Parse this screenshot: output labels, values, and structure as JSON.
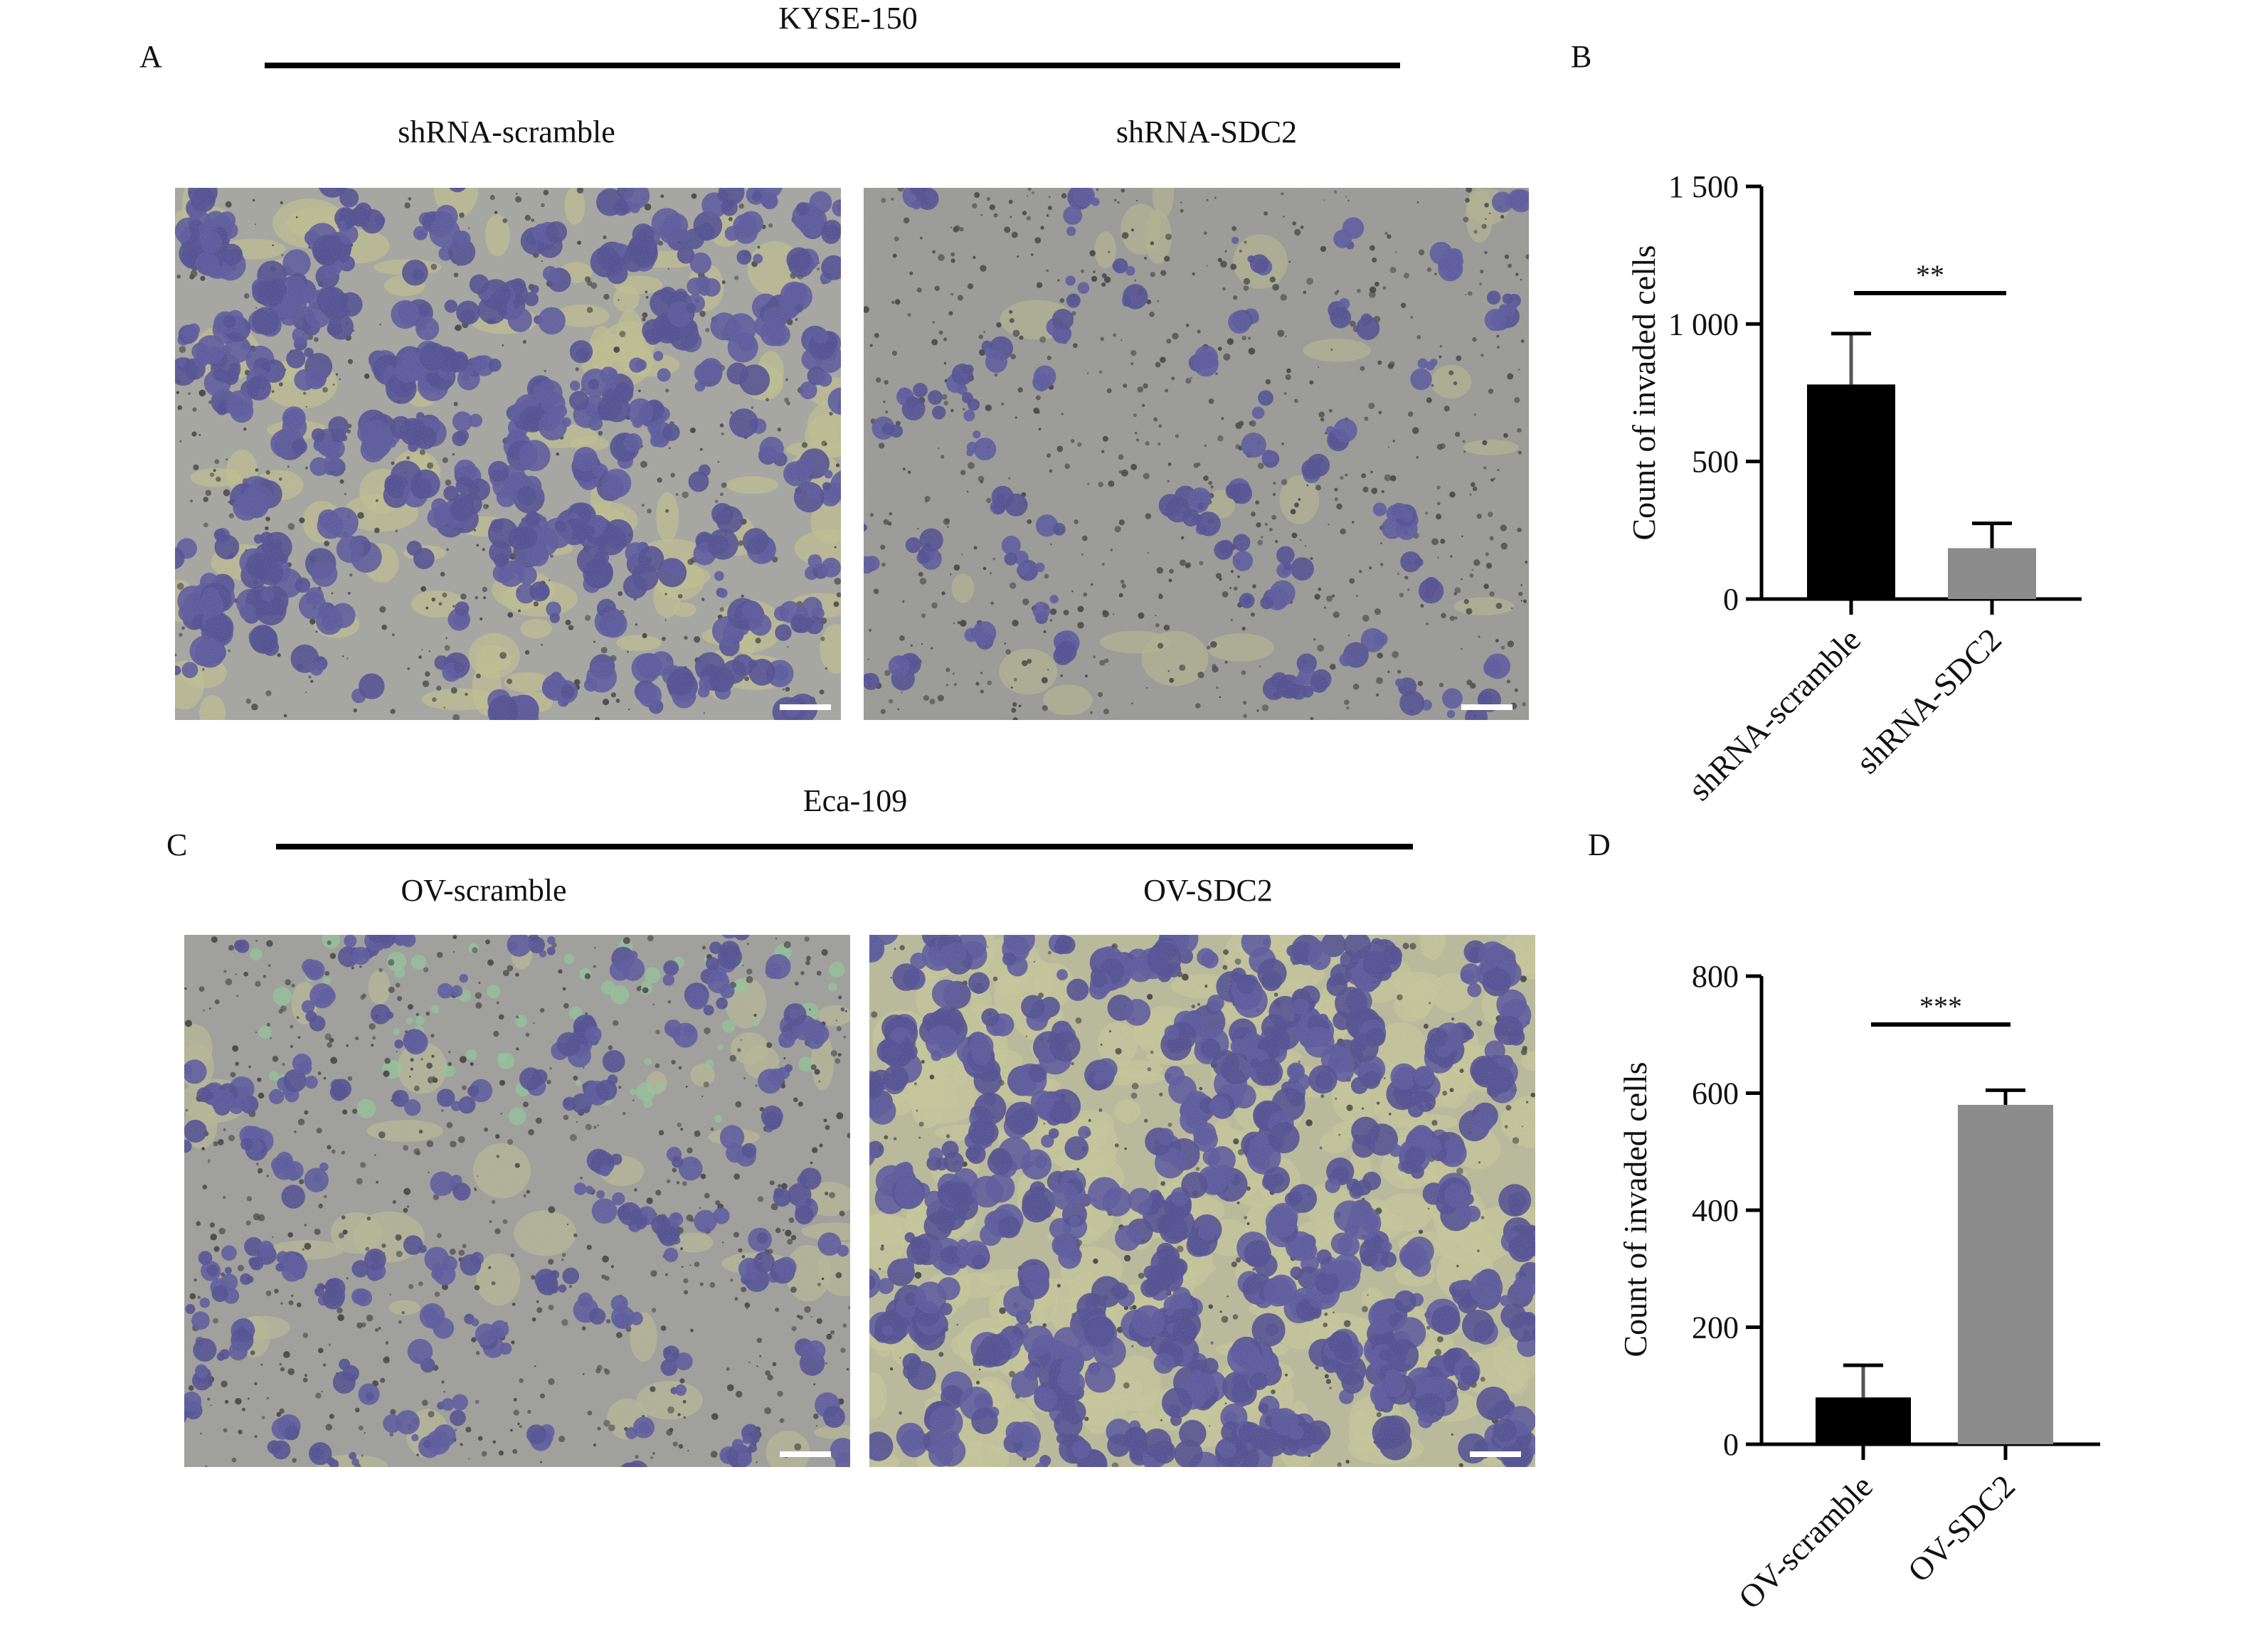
{
  "panels": {
    "A": {
      "letter": "A",
      "cell_line": "KYSE-150",
      "images": [
        {
          "label": "shRNA-scramble",
          "scene": "dense"
        },
        {
          "label": "shRNA-SDC2",
          "scene": "sparse"
        }
      ]
    },
    "C": {
      "letter": "C",
      "cell_line": "Eca-109",
      "images": [
        {
          "label": "OV-scramble",
          "scene": "sparse-green"
        },
        {
          "label": "OV-SDC2",
          "scene": "dense-yellow"
        }
      ]
    }
  },
  "chart_data": [
    {
      "panel": "B",
      "type": "bar",
      "categories": [
        "shRNA-scramble",
        "shRNA-SDC2"
      ],
      "values": [
        780,
        185
      ],
      "errors": [
        185,
        90
      ],
      "bar_colors": [
        "#000000",
        "#8c8c8c"
      ],
      "ylabel": "Count of invaded cells",
      "ylim": [
        0,
        1500
      ],
      "yticks": [
        0,
        500,
        1000,
        1500
      ],
      "ytick_labels": [
        "0",
        "500",
        "1 000",
        "1 500"
      ],
      "significance": "**",
      "grid": false
    },
    {
      "panel": "D",
      "type": "bar",
      "categories": [
        "OV-scramble",
        "OV-SDC2"
      ],
      "values": [
        80,
        580
      ],
      "errors": [
        55,
        25
      ],
      "bar_colors": [
        "#000000",
        "#8c8c8c"
      ],
      "ylabel": "Count of invaded cells",
      "ylim": [
        0,
        800
      ],
      "yticks": [
        0,
        200,
        400,
        600,
        800
      ],
      "ytick_labels": [
        "0",
        "200",
        "400",
        "600",
        "800"
      ],
      "significance": "***",
      "grid": false
    }
  ]
}
